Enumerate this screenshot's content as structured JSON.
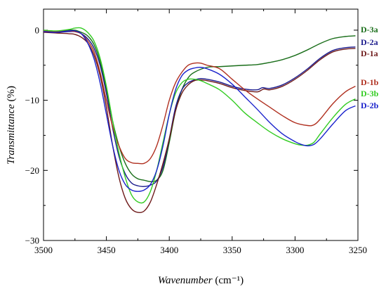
{
  "chart_data": {
    "type": "line",
    "title": "",
    "xlabel": "Wavenumber",
    "xlabel_unit": "(cm⁻¹)",
    "ylabel": "Transmittance",
    "ylabel_unit": "(%)",
    "xlim": [
      3500,
      3250
    ],
    "ylim": [
      -30,
      3
    ],
    "x_reversed": true,
    "grid": false,
    "legend_placement": "right, at curve ends",
    "x_ticks": [
      3500,
      3450,
      3400,
      3350,
      3300,
      3250
    ],
    "y_ticks": [
      0,
      -10,
      -20,
      -30
    ],
    "series": [
      {
        "name": "D-3a",
        "color": "#1a6e1a",
        "points": [
          [
            3500,
            -0.2
          ],
          [
            3490,
            -0.2
          ],
          [
            3480,
            0
          ],
          [
            3475,
            0
          ],
          [
            3470,
            -0.3
          ],
          [
            3465,
            -0.8
          ],
          [
            3460,
            -2
          ],
          [
            3455,
            -4.5
          ],
          [
            3450,
            -8.5
          ],
          [
            3445,
            -13
          ],
          [
            3440,
            -16.5
          ],
          [
            3435,
            -19
          ],
          [
            3430,
            -20.5
          ],
          [
            3425,
            -21.2
          ],
          [
            3420,
            -21.4
          ],
          [
            3415,
            -21.6
          ],
          [
            3410,
            -21.4
          ],
          [
            3405,
            -20
          ],
          [
            3400,
            -16
          ],
          [
            3395,
            -11.5
          ],
          [
            3390,
            -8.5
          ],
          [
            3385,
            -6.8
          ],
          [
            3380,
            -6
          ],
          [
            3370,
            -5.3
          ],
          [
            3360,
            -5.2
          ],
          [
            3350,
            -5.1
          ],
          [
            3340,
            -5
          ],
          [
            3330,
            -4.9
          ],
          [
            3320,
            -4.6
          ],
          [
            3310,
            -4.2
          ],
          [
            3300,
            -3.6
          ],
          [
            3290,
            -2.8
          ],
          [
            3280,
            -1.9
          ],
          [
            3270,
            -1.2
          ],
          [
            3260,
            -0.9
          ],
          [
            3252,
            -0.8
          ]
        ]
      },
      {
        "name": "D-2a",
        "color": "#1a1a8c",
        "points": [
          [
            3500,
            -0.2
          ],
          [
            3490,
            -0.3
          ],
          [
            3480,
            -0.2
          ],
          [
            3475,
            -0.2
          ],
          [
            3470,
            -0.5
          ],
          [
            3465,
            -1.2
          ],
          [
            3460,
            -2.5
          ],
          [
            3455,
            -5
          ],
          [
            3450,
            -9
          ],
          [
            3445,
            -14
          ],
          [
            3440,
            -18
          ],
          [
            3435,
            -20.5
          ],
          [
            3430,
            -21.8
          ],
          [
            3425,
            -22.2
          ],
          [
            3420,
            -22.3
          ],
          [
            3415,
            -22.1
          ],
          [
            3410,
            -21.5
          ],
          [
            3405,
            -19.5
          ],
          [
            3400,
            -15.5
          ],
          [
            3395,
            -11
          ],
          [
            3390,
            -8.5
          ],
          [
            3385,
            -7.5
          ],
          [
            3380,
            -7.1
          ],
          [
            3375,
            -6.9
          ],
          [
            3370,
            -7
          ],
          [
            3360,
            -7.4
          ],
          [
            3350,
            -8
          ],
          [
            3340,
            -8.4
          ],
          [
            3330,
            -8.5
          ],
          [
            3326,
            -8.2
          ],
          [
            3320,
            -8.3
          ],
          [
            3310,
            -7.8
          ],
          [
            3300,
            -6.8
          ],
          [
            3290,
            -5.5
          ],
          [
            3280,
            -4
          ],
          [
            3270,
            -2.9
          ],
          [
            3260,
            -2.5
          ],
          [
            3252,
            -2.4
          ]
        ]
      },
      {
        "name": "D-1a",
        "color": "#6e1a1a",
        "points": [
          [
            3500,
            -0.3
          ],
          [
            3490,
            -0.4
          ],
          [
            3480,
            -0.5
          ],
          [
            3475,
            -0.6
          ],
          [
            3470,
            -1
          ],
          [
            3465,
            -1.8
          ],
          [
            3460,
            -3.5
          ],
          [
            3455,
            -6.5
          ],
          [
            3450,
            -11
          ],
          [
            3445,
            -16.5
          ],
          [
            3440,
            -21
          ],
          [
            3435,
            -24
          ],
          [
            3430,
            -25.5
          ],
          [
            3425,
            -26
          ],
          [
            3420,
            -25.8
          ],
          [
            3415,
            -24.5
          ],
          [
            3410,
            -22
          ],
          [
            3405,
            -19
          ],
          [
            3400,
            -15.5
          ],
          [
            3395,
            -11.5
          ],
          [
            3390,
            -9
          ],
          [
            3385,
            -7.8
          ],
          [
            3380,
            -7.2
          ],
          [
            3375,
            -7.1
          ],
          [
            3370,
            -7.2
          ],
          [
            3360,
            -7.6
          ],
          [
            3350,
            -8.2
          ],
          [
            3340,
            -8.6
          ],
          [
            3330,
            -8.8
          ],
          [
            3325,
            -8.4
          ],
          [
            3320,
            -8.5
          ],
          [
            3310,
            -8
          ],
          [
            3300,
            -7
          ],
          [
            3290,
            -5.7
          ],
          [
            3280,
            -4.2
          ],
          [
            3270,
            -3.1
          ],
          [
            3260,
            -2.7
          ],
          [
            3252,
            -2.6
          ]
        ]
      },
      {
        "name": "D-1b",
        "color": "#b03020",
        "points": [
          [
            3500,
            -0.1
          ],
          [
            3490,
            -0.2
          ],
          [
            3480,
            -0.1
          ],
          [
            3475,
            -0.2
          ],
          [
            3470,
            -0.5
          ],
          [
            3465,
            -1.5
          ],
          [
            3460,
            -3
          ],
          [
            3455,
            -6
          ],
          [
            3450,
            -10
          ],
          [
            3445,
            -13.8
          ],
          [
            3440,
            -16.5
          ],
          [
            3435,
            -18.3
          ],
          [
            3430,
            -18.9
          ],
          [
            3425,
            -19
          ],
          [
            3420,
            -19
          ],
          [
            3415,
            -18.3
          ],
          [
            3410,
            -16.5
          ],
          [
            3405,
            -13.5
          ],
          [
            3400,
            -10
          ],
          [
            3395,
            -7.5
          ],
          [
            3390,
            -6
          ],
          [
            3385,
            -5
          ],
          [
            3380,
            -4.7
          ],
          [
            3375,
            -4.7
          ],
          [
            3370,
            -5
          ],
          [
            3360,
            -5.5
          ],
          [
            3350,
            -7
          ],
          [
            3340,
            -8.5
          ],
          [
            3330,
            -9.8
          ],
          [
            3320,
            -11
          ],
          [
            3310,
            -12.2
          ],
          [
            3300,
            -13.2
          ],
          [
            3290,
            -13.6
          ],
          [
            3285,
            -13.5
          ],
          [
            3280,
            -12.7
          ],
          [
            3270,
            -10.5
          ],
          [
            3260,
            -8.8
          ],
          [
            3252,
            -8
          ]
        ]
      },
      {
        "name": "D-3b",
        "color": "#33cc22",
        "points": [
          [
            3500,
            0
          ],
          [
            3490,
            -0.1
          ],
          [
            3480,
            0.1
          ],
          [
            3475,
            0.3
          ],
          [
            3470,
            0.3
          ],
          [
            3465,
            -0.3
          ],
          [
            3460,
            -1.5
          ],
          [
            3455,
            -4
          ],
          [
            3450,
            -8
          ],
          [
            3445,
            -13
          ],
          [
            3440,
            -17.5
          ],
          [
            3435,
            -21
          ],
          [
            3430,
            -23.5
          ],
          [
            3425,
            -24.5
          ],
          [
            3420,
            -24.5
          ],
          [
            3415,
            -23
          ],
          [
            3410,
            -20
          ],
          [
            3405,
            -16
          ],
          [
            3400,
            -12
          ],
          [
            3395,
            -9
          ],
          [
            3390,
            -7.5
          ],
          [
            3385,
            -7
          ],
          [
            3380,
            -7
          ],
          [
            3375,
            -7.2
          ],
          [
            3370,
            -7.6
          ],
          [
            3360,
            -8.5
          ],
          [
            3350,
            -10
          ],
          [
            3340,
            -11.8
          ],
          [
            3330,
            -13.2
          ],
          [
            3320,
            -14.5
          ],
          [
            3310,
            -15.5
          ],
          [
            3300,
            -16.2
          ],
          [
            3295,
            -16.4
          ],
          [
            3290,
            -16.4
          ],
          [
            3285,
            -16
          ],
          [
            3280,
            -14.8
          ],
          [
            3270,
            -12.5
          ],
          [
            3260,
            -10.6
          ],
          [
            3252,
            -9.8
          ]
        ]
      },
      {
        "name": "D-2b",
        "color": "#1a22cc",
        "points": [
          [
            3500,
            -0.2
          ],
          [
            3490,
            -0.3
          ],
          [
            3480,
            -0.1
          ],
          [
            3475,
            -0.1
          ],
          [
            3470,
            -0.5
          ],
          [
            3465,
            -1.8
          ],
          [
            3460,
            -4
          ],
          [
            3455,
            -7.5
          ],
          [
            3450,
            -12
          ],
          [
            3445,
            -16.5
          ],
          [
            3440,
            -20
          ],
          [
            3435,
            -22
          ],
          [
            3430,
            -22.8
          ],
          [
            3425,
            -23
          ],
          [
            3420,
            -22.8
          ],
          [
            3415,
            -22
          ],
          [
            3410,
            -20
          ],
          [
            3405,
            -16.5
          ],
          [
            3400,
            -12
          ],
          [
            3395,
            -8.5
          ],
          [
            3390,
            -6.5
          ],
          [
            3385,
            -5.7
          ],
          [
            3380,
            -5.4
          ],
          [
            3375,
            -5.3
          ],
          [
            3370,
            -5.5
          ],
          [
            3360,
            -6.3
          ],
          [
            3350,
            -7.7
          ],
          [
            3340,
            -9.5
          ],
          [
            3330,
            -11.3
          ],
          [
            3320,
            -13.2
          ],
          [
            3310,
            -14.8
          ],
          [
            3300,
            -15.9
          ],
          [
            3295,
            -16.3
          ],
          [
            3290,
            -16.5
          ],
          [
            3285,
            -16.3
          ],
          [
            3280,
            -15.5
          ],
          [
            3270,
            -13.4
          ],
          [
            3260,
            -11.5
          ],
          [
            3252,
            -10.8
          ]
        ]
      }
    ],
    "legend_order": [
      "D-3a",
      "D-2a",
      "D-1a",
      "D-1b",
      "D-3b",
      "D-2b"
    ]
  }
}
